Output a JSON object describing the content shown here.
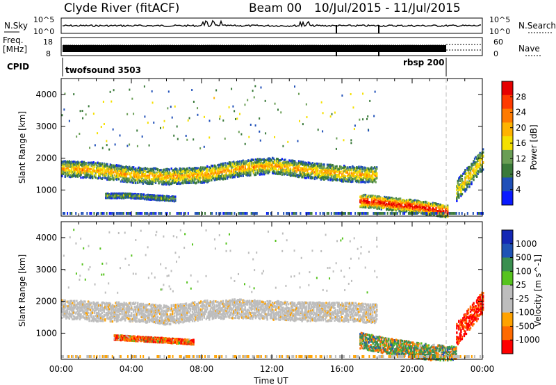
{
  "header": {
    "station": "Clyde River (fitACF)",
    "beam": "Beam 00",
    "date_range": "10/Jul/2015 - 11/Jul/2015"
  },
  "strip_labels": {
    "nsky": "N.Sky",
    "nsearch": "N.Search",
    "freq_line1": "Freq.",
    "freq_line2": "[MHz]",
    "nave": "Nave",
    "cpid": "CPID",
    "noise_top": "10^5",
    "noise_bottom": "10^0",
    "freq_top": "18",
    "freq_bottom": "8",
    "nave_top": "60",
    "nave_bottom": "0"
  },
  "cpid_labels": {
    "first": "twofsound 3503",
    "second": "rbsp 200"
  },
  "colors": {
    "power_scale": [
      "#0a1aff",
      "#1f4fb8",
      "#3a7a3a",
      "#6a9e55",
      "#f5e000",
      "#ffb300",
      "#ff7a00",
      "#ff3a00",
      "#e60000"
    ],
    "velocity_scale": [
      "#ff0000",
      "#ff6a00",
      "#ffa200",
      "#bdbdbd",
      "#bdbdbd",
      "#56c31e",
      "#3a8f4f",
      "#1f53b5",
      "#1428b5"
    ],
    "ground_scatter": "#bdbdbd"
  },
  "chart_data": [
    {
      "type": "heatmap",
      "title": "",
      "xlabel": "Time UT",
      "ylabel": "Slant Range [km]",
      "x_range_hours": [
        0,
        24
      ],
      "ylim": [
        180,
        4500
      ],
      "x_ticks": [
        "00:00",
        "04:00",
        "08:00",
        "12:00",
        "16:00",
        "20:00",
        "00:00"
      ],
      "y_ticks": [
        1000,
        2000,
        3000,
        4000
      ],
      "colorbar": {
        "label": "Power [dB]",
        "ticks": [
          4,
          8,
          12,
          16,
          20,
          24,
          28
        ],
        "range": [
          0,
          32
        ]
      },
      "bands": [
        {
          "t_start": 0.0,
          "t_end": 18.0,
          "range_center_km": [
            1700,
            1650,
            1500,
            1450,
            1500,
            1700,
            1800,
            1650,
            1550,
            1500
          ],
          "width_km": 500,
          "power_db": 16
        },
        {
          "t_start": 2.5,
          "t_end": 6.5,
          "range_center_km": [
            850,
            850,
            800,
            750
          ],
          "width_km": 150,
          "power_db": 10
        },
        {
          "t_start": 17.0,
          "t_end": 22.0,
          "range_center_km": [
            700,
            600,
            500,
            350
          ],
          "width_km": 400,
          "power_db": 24
        },
        {
          "t_start": 22.5,
          "t_end": 24.0,
          "range_center_km": [
            1000,
            1500,
            2000
          ],
          "width_km": 700,
          "power_db": 14
        }
      ]
    },
    {
      "type": "heatmap",
      "title": "",
      "xlabel": "Time UT",
      "ylabel": "Slant Range [km]",
      "x_range_hours": [
        0,
        24
      ],
      "ylim": [
        180,
        4500
      ],
      "x_ticks": [
        "00:00",
        "04:00",
        "08:00",
        "12:00",
        "16:00",
        "20:00",
        "00:00"
      ],
      "y_ticks": [
        1000,
        2000,
        3000,
        4000
      ],
      "colorbar": {
        "label": "Velocity [m s^-1]",
        "ticks": [
          1000,
          500,
          100,
          25,
          -25,
          -100,
          -500,
          -1000
        ]
      },
      "bands": [
        {
          "t_start": 0.0,
          "t_end": 18.0,
          "range_center_km": [
            1800,
            1700,
            1700,
            1600,
            1750,
            1800,
            1750,
            1700,
            1700,
            1650
          ],
          "width_km": 600,
          "velocity": 0
        },
        {
          "t_start": 3.0,
          "t_end": 7.5,
          "range_center_km": [
            900,
            850,
            800,
            750
          ],
          "width_km": 150,
          "velocity": -300
        },
        {
          "t_start": 17.0,
          "t_end": 22.5,
          "range_center_km": [
            800,
            600,
            450,
            350
          ],
          "width_km": 500,
          "velocity": 150
        },
        {
          "t_start": 22.5,
          "t_end": 24.0,
          "range_center_km": [
            1000,
            1500,
            2000
          ],
          "width_km": 700,
          "velocity": -600
        }
      ]
    }
  ]
}
